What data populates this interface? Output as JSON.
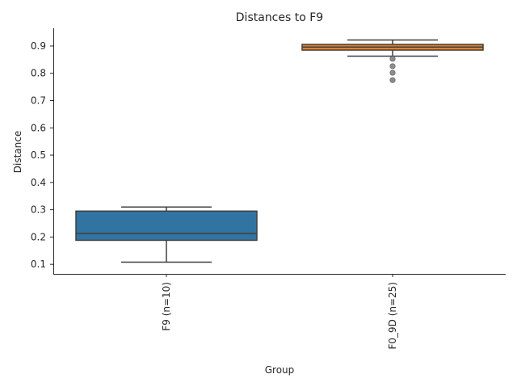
{
  "chart_data": {
    "type": "box",
    "title": "Distances to F9",
    "xlabel": "Group",
    "ylabel": "Distance",
    "ylim": [
      0.065,
      0.965
    ],
    "yticks": [
      0.1,
      0.2,
      0.3,
      0.4,
      0.5,
      0.6,
      0.7,
      0.8,
      0.9
    ],
    "ytick_labels": [
      "0.1",
      "0.2",
      "0.3",
      "0.4",
      "0.5",
      "0.6",
      "0.7",
      "0.8",
      "0.9"
    ],
    "grid": false,
    "categories": [
      "F9 (n=10)",
      "F0_9D (n=25)"
    ],
    "boxes": [
      {
        "label": "F9 (n=10)",
        "whisker_low": 0.108,
        "q1": 0.188,
        "median": 0.213,
        "q3": 0.295,
        "whisker_high": 0.31,
        "outliers": [],
        "color": "#3274a1"
      },
      {
        "label": "F0_9D (n=25)",
        "whisker_low": 0.863,
        "q1": 0.885,
        "median": 0.896,
        "q3": 0.906,
        "whisker_high": 0.922,
        "outliers": [
          0.853,
          0.826,
          0.802,
          0.775
        ],
        "color": "#e1812c"
      }
    ],
    "colors": {
      "line": "#3f3f3f",
      "outlier": "#8c8c8c",
      "axis": "#262626"
    }
  }
}
